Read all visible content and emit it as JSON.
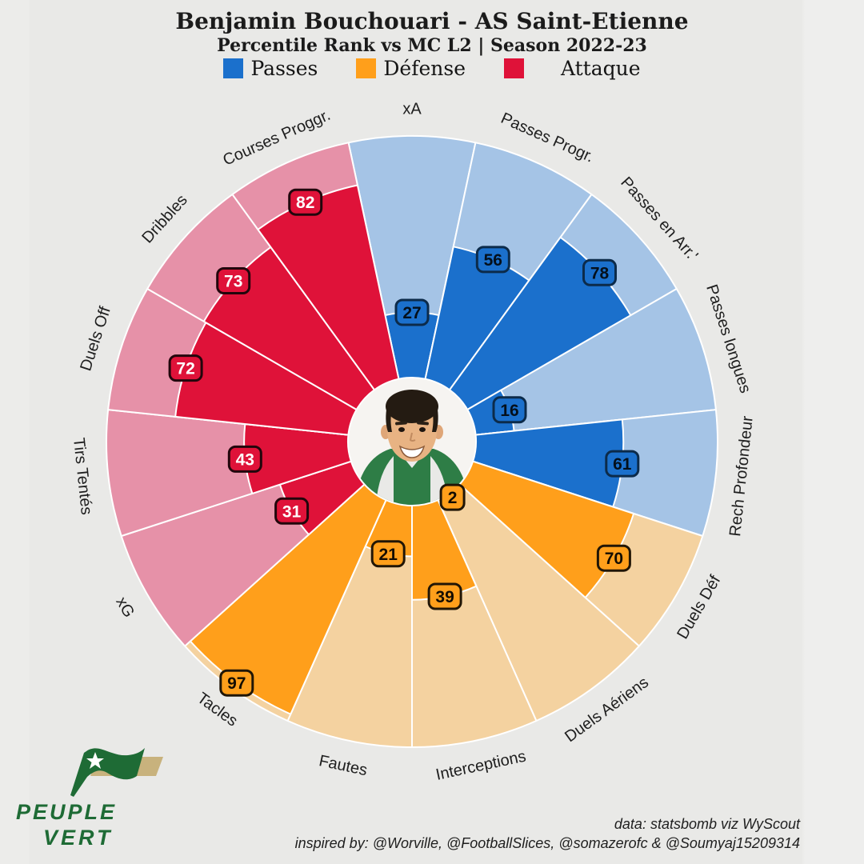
{
  "header": {
    "title": "Benjamin Bouchouari - AS Saint-Etienne",
    "subtitle": "Percentile Rank vs MC L2 | Season 2022-23"
  },
  "legend": [
    {
      "label": "Passes",
      "color": "#1B70CC"
    },
    {
      "label": "Défense",
      "color": "#FF9F1B"
    },
    {
      "label": "Attaque",
      "color": "#DF1239"
    }
  ],
  "chart_data": {
    "type": "pie",
    "subtype": "pizza-percentile",
    "title": "Benjamin Bouchouari - AS Saint-Etienne",
    "subtitle": "Percentile Rank vs MC L2 | Season 2022-23",
    "value_range": [
      0,
      100
    ],
    "center_image": "player-headshot",
    "groups": [
      "Passes",
      "Défense",
      "Attaque"
    ],
    "slices": [
      {
        "label": "xA",
        "value": 27,
        "group": "Passes"
      },
      {
        "label": "Passes Progr.",
        "value": 56,
        "group": "Passes"
      },
      {
        "label": "Passes en Arr.'",
        "value": 78,
        "group": "Passes"
      },
      {
        "label": "Passes longues",
        "value": 16,
        "group": "Passes"
      },
      {
        "label": "Rech Profondeur",
        "value": 61,
        "group": "Passes"
      },
      {
        "label": "Duels Déf",
        "value": 70,
        "group": "Défense"
      },
      {
        "label": "Duels Aériens",
        "value": 2,
        "group": "Défense"
      },
      {
        "label": "Interceptions",
        "value": 39,
        "group": "Défense"
      },
      {
        "label": "Fautes",
        "value": 21,
        "group": "Défense"
      },
      {
        "label": "Tacles",
        "value": 97,
        "group": "Défense"
      },
      {
        "label": "xG",
        "value": 31,
        "group": "Attaque"
      },
      {
        "label": "Tirs Tentés",
        "value": 43,
        "group": "Attaque"
      },
      {
        "label": "Duels Off",
        "value": 72,
        "group": "Attaque"
      },
      {
        "label": "Dribbles",
        "value": 73,
        "group": "Attaque"
      },
      {
        "label": "Courses Proggr.",
        "value": 82,
        "group": "Attaque"
      }
    ],
    "colors": {
      "Passes": {
        "bg": "#A5C4E6",
        "fill": "#1B70CC",
        "edge": "#0C2B4A",
        "text": "#04101C"
      },
      "Défense": {
        "bg": "#F4D2A0",
        "fill": "#FF9F1B",
        "edge": "#211606",
        "text": "#140D02"
      },
      "Attaque": {
        "bg": "#E691A8",
        "fill": "#DF1239",
        "edge": "#22060C",
        "text": "#FFFFFF"
      }
    }
  },
  "footer": {
    "credit_line1": "data: statsbomb viz WyScout",
    "credit_line2": "inspired by: @Worville, @FootballSlices, @somazerofc & @Soumyaj15209314"
  },
  "logo": {
    "line1": "PEUPLE",
    "line2": "VERT",
    "green": "#1E6B35",
    "gold": "#C8B27D"
  }
}
